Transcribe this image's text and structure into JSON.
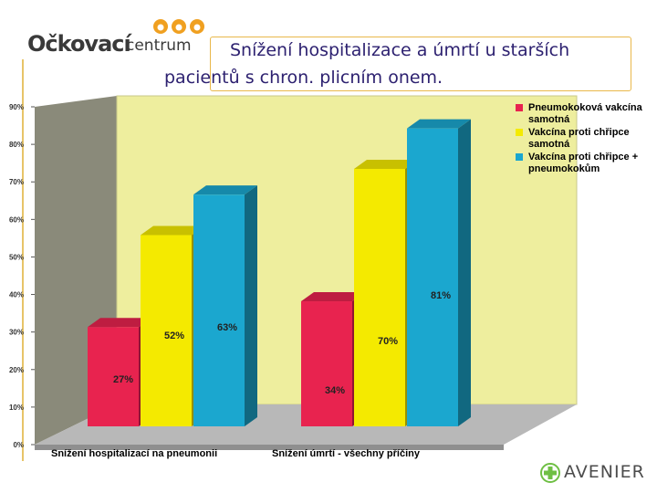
{
  "header": {
    "logo_main": "Očkovací",
    "logo_sub": "centrum",
    "title_line1": "Snížení hospitalizace a úmrtí u starších",
    "title_line2": "pacientů s chron. plicním onem."
  },
  "footer": {
    "brand": "AVENIER"
  },
  "chart_data": {
    "type": "bar",
    "categories": [
      "Snížení hospitalizací na pneumonii",
      "Snížení úmrtí - všechny příčiny"
    ],
    "series": [
      {
        "name": "Pneumokoková vakcína samotná",
        "values": [
          27,
          34
        ],
        "color": "#e8234f"
      },
      {
        "name": "Vakcína proti chřipce samotná",
        "values": [
          52,
          70
        ],
        "color": "#f4ea00"
      },
      {
        "name": "Vakcína proti chřipce + pneumokokům",
        "values": [
          63,
          81
        ],
        "color": "#1ba7cf"
      }
    ],
    "value_labels": [
      [
        "27%",
        "34%"
      ],
      [
        "52%",
        "70%"
      ],
      [
        "63%",
        "81%"
      ]
    ],
    "yticks": [
      "0%",
      "10%",
      "20%",
      "30%",
      "40%",
      "50%",
      "60%",
      "70%",
      "80%",
      "90%"
    ],
    "ylim": [
      0,
      90
    ],
    "grid": false,
    "legend_position": "top-right",
    "wall_color": "#eeee9e",
    "side_wall_color": "#8a8a7a",
    "floor_color": "#b8b8b8"
  }
}
